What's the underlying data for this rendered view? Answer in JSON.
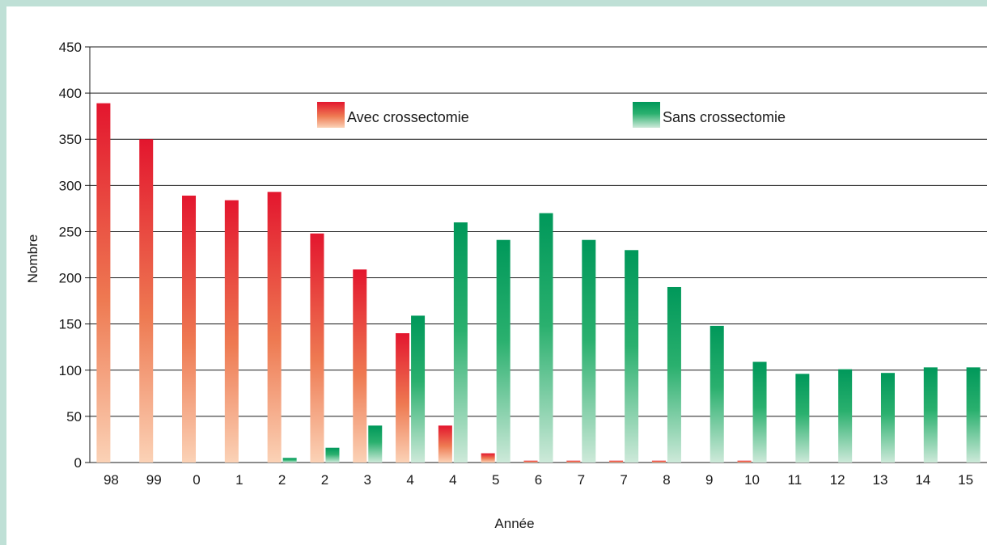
{
  "colors": {
    "avec": "#e3162e",
    "sans": "#00985a",
    "background_border": "#bfe0d6"
  },
  "chart_data": {
    "type": "bar",
    "xlabel": "Année",
    "ylabel": "Nombre",
    "ylim": [
      0,
      450
    ],
    "yticks": [
      0,
      50,
      100,
      150,
      200,
      250,
      300,
      350,
      400,
      450
    ],
    "grid": true,
    "legend_position": "top",
    "categories": [
      "98",
      "99",
      "0",
      "1",
      "2",
      "2",
      "3",
      "4",
      "4",
      "5",
      "6",
      "7",
      "7",
      "8",
      "9",
      "10",
      "11",
      "12",
      "13",
      "14",
      "15"
    ],
    "series": [
      {
        "name": "Avec crossectomie",
        "values": [
          389,
          350,
          289,
          284,
          293,
          248,
          209,
          140,
          40,
          10,
          2,
          2,
          2,
          2,
          0,
          2,
          0,
          0,
          0,
          0,
          0
        ]
      },
      {
        "name": "Sans crossectomie",
        "values": [
          0,
          0,
          0,
          0,
          5,
          16,
          40,
          159,
          260,
          241,
          270,
          241,
          230,
          190,
          148,
          109,
          96,
          101,
          97,
          103,
          103
        ]
      }
    ]
  }
}
